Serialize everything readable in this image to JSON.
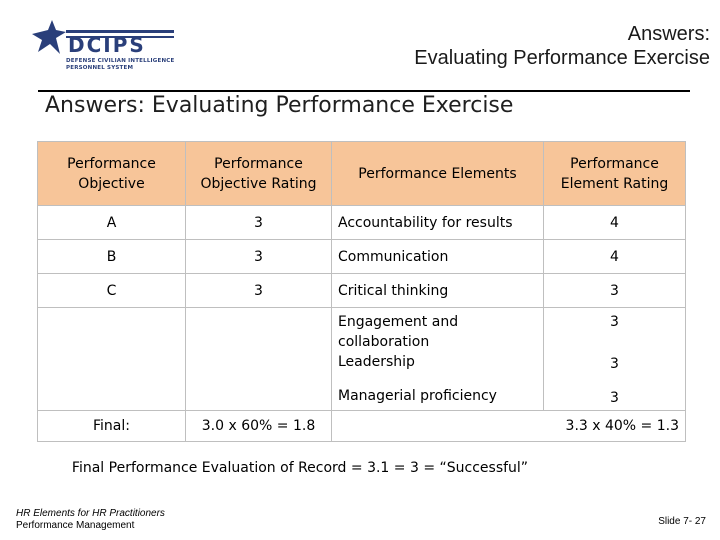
{
  "logo": {
    "text": "DCIPS",
    "subtitle": "DEFENSE CIVILIAN INTELLIGENCE\nPERSONNEL SYSTEM",
    "color": "#2a3f7a"
  },
  "header": {
    "title_line1": "Answers:",
    "title_line2": "Evaluating Performance Exercise"
  },
  "slide_title": "Answers: Evaluating Performance Exercise",
  "table": {
    "header_color": "#f7c599",
    "columns": [
      "Performance Objective",
      "Performance Objective Rating",
      "Performance Elements",
      "Performance Element Rating"
    ],
    "rows": [
      {
        "objective": "A",
        "obj_rating": "3",
        "element": "Accountability for results",
        "el_rating": "4"
      },
      {
        "objective": "B",
        "obj_rating": "3",
        "element": "Communication",
        "el_rating": "4"
      },
      {
        "objective": "C",
        "obj_rating": "3",
        "element": "Critical thinking",
        "el_rating": "3"
      }
    ],
    "extra": {
      "element_1": "Engagement and collaboration",
      "element_2": "Leadership",
      "rating_1": "3",
      "rating_2": "3",
      "element_3": "Managerial proficiency",
      "rating_3": "3"
    },
    "final": {
      "label": "Final:",
      "objective_calc": "3.0 x 60% = 1.8",
      "element_calc": "3.3 x 40% = 1.3"
    }
  },
  "summary": "Final Performance Evaluation of Record = 3.1 =  3 = “Successful”",
  "footer": {
    "line1": "HR Elements for HR Practitioners",
    "line2": "Performance Management",
    "slide_number": "Slide 7- 27"
  }
}
